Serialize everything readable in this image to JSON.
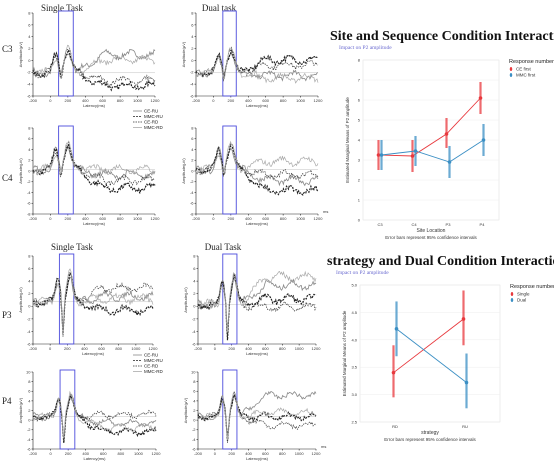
{
  "erp_figures": [
    {
      "headers": [
        "Single Task",
        "Dual task"
      ],
      "rows": [
        {
          "electrode": "C3"
        },
        {
          "electrode": "C4"
        }
      ],
      "legend": [
        "CE-RU",
        "MMC-RU",
        "CE-RD",
        "MMC-RD"
      ],
      "xlabel": "Latency(ms)",
      "ylabel": "Amplitude(μV)",
      "xticks": [
        "-200",
        "0",
        "200",
        "400",
        "600",
        "800",
        "1000",
        "1200"
      ],
      "c3_yticks": [
        "8",
        "6",
        "4",
        "2",
        "0",
        "-2",
        "-4",
        "-6"
      ],
      "c4_yticks": [
        "8",
        "6",
        "4",
        "2",
        "0",
        "-2",
        "-4",
        "-6",
        "-8"
      ],
      "ms": "ms"
    },
    {
      "headers": [
        "Single Task",
        "Dual Task"
      ],
      "rows": [
        {
          "electrode": "P3"
        },
        {
          "electrode": "P4"
        }
      ],
      "legend": [
        "CE-RU",
        "MMC-RU",
        "CE-RD",
        "MMC-RD"
      ],
      "xlabel": "Latency(ms)",
      "ylabel": "Amplitude(μV)",
      "xticks": [
        "-200",
        "0",
        "200",
        "400",
        "600",
        "800",
        "1000",
        "1200"
      ],
      "p3_yticks": [
        "8",
        "6",
        "4",
        "2",
        "0",
        "-2",
        "-4",
        "-6"
      ],
      "p4_yticks": [
        "10",
        "8",
        "6",
        "4",
        "2",
        "0",
        "-2",
        "-4",
        "-6"
      ],
      "ms": "ms"
    }
  ],
  "chart_data": [
    {
      "type": "line",
      "title": "Site and Sequence Condition Interaction Effect",
      "subtitle": "Impact on P2 amplitude",
      "xlabel": "Site Location",
      "ylabel": "Estimated Marginal Means of P2 amplitude",
      "note": "Error bars represent 95% confidence intervals",
      "legend_title": "Response number",
      "categories": [
        "C3",
        "C4",
        "P3",
        "P4"
      ],
      "ylim": [
        0,
        8
      ],
      "yticks": [
        "0",
        "1",
        "2",
        "3",
        "4",
        "5",
        "6",
        "7",
        "8"
      ],
      "series": [
        {
          "name": "CE first",
          "color": "#e8383d",
          "values": [
            3.25,
            3.2,
            4.3,
            6.1
          ],
          "ci": [
            [
              2.5,
              4.0
            ],
            [
              2.4,
              4.0
            ],
            [
              3.6,
              5.1
            ],
            [
              5.3,
              6.9
            ]
          ]
        },
        {
          "name": "MMC first",
          "color": "#3b8fc4",
          "values": [
            3.25,
            3.45,
            2.9,
            4.0
          ],
          "ci": [
            [
              2.5,
              4.0
            ],
            [
              2.7,
              4.2
            ],
            [
              2.1,
              3.7
            ],
            [
              3.2,
              4.8
            ]
          ]
        }
      ]
    },
    {
      "type": "line",
      "title": "strategy and Dual Condition Interaction Effect",
      "subtitle": "Impact on P2 amplitude",
      "xlabel": "strategy",
      "ylabel": "Estimated Marginal Means of P2 amplitude",
      "note": "Error bars represent 95% confidence intervals",
      "legend_title": "Response number",
      "categories": [
        "RD",
        "RU"
      ],
      "ylim": [
        2.5,
        5.0
      ],
      "yticks": [
        "2.5",
        "3.0",
        "3.5",
        "4.0",
        "4.5",
        "5.0"
      ],
      "series": [
        {
          "name": "Single",
          "color": "#e8383d",
          "values": [
            3.4,
            4.38
          ],
          "ci": [
            [
              2.95,
              3.9
            ],
            [
              3.9,
              4.9
            ]
          ]
        },
        {
          "name": "Dual",
          "color": "#3b8fc4",
          "values": [
            4.2,
            3.22
          ],
          "ci": [
            [
              3.7,
              4.7
            ],
            [
              2.75,
              3.75
            ]
          ]
        }
      ]
    }
  ]
}
